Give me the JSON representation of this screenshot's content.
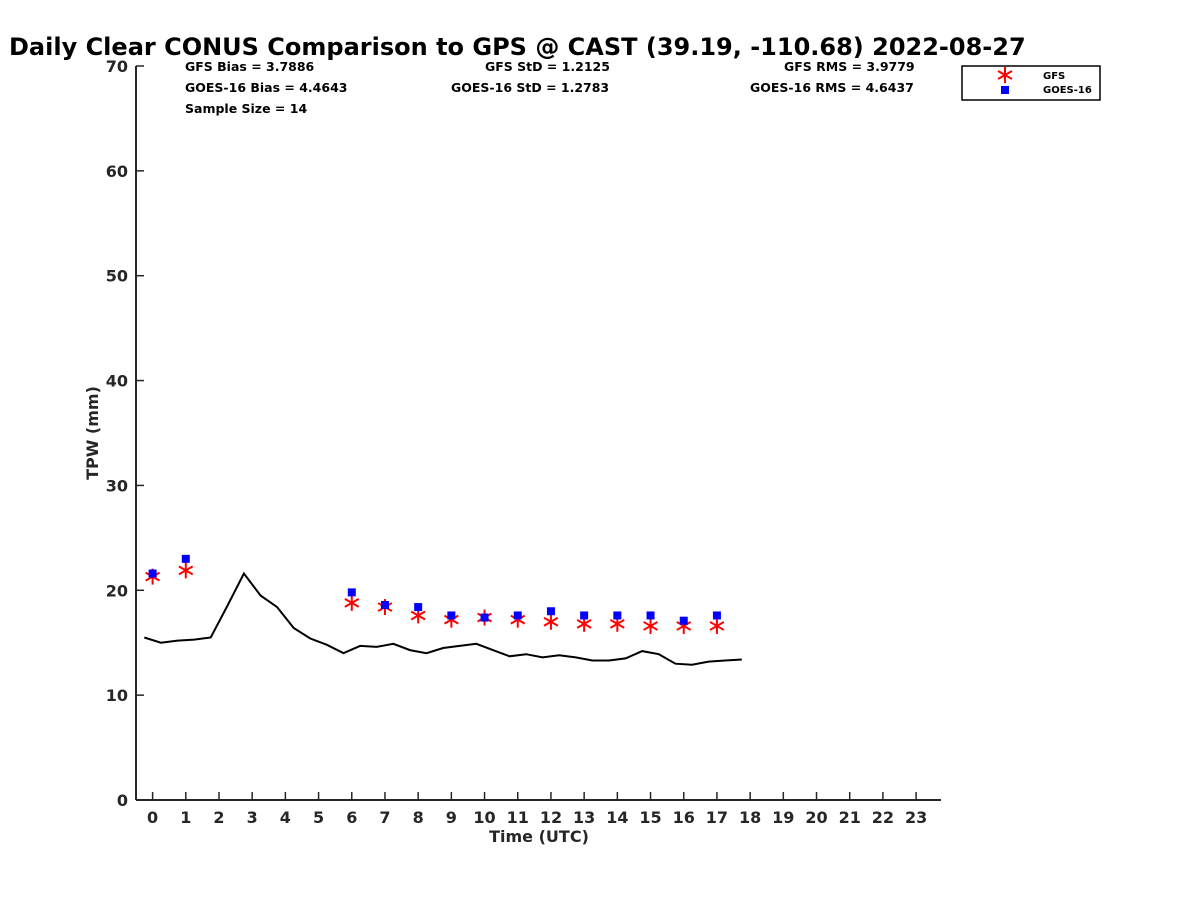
{
  "chart_data": {
    "type": "scatter",
    "title": "Daily Clear CONUS Comparison to GPS @ CAST (39.19, -110.68) 2022-08-27",
    "xlabel": "Time (UTC)",
    "ylabel": "TPW (mm)",
    "xlim": [
      -0.5,
      23.75
    ],
    "ylim": [
      0,
      70
    ],
    "xticks": [
      0,
      1,
      2,
      3,
      4,
      5,
      6,
      7,
      8,
      9,
      10,
      11,
      12,
      13,
      14,
      15,
      16,
      17,
      18,
      19,
      20,
      21,
      22,
      23
    ],
    "yticks": [
      0,
      10,
      20,
      30,
      40,
      50,
      60,
      70
    ],
    "grid": false,
    "legend_position": "top-right",
    "stats": {
      "gfs_bias": "GFS Bias = 3.7886",
      "goes_bias": "GOES-16 Bias = 4.4643",
      "sample_size": "Sample Size = 14",
      "gfs_std": "GFS StD = 1.2125",
      "goes_std": "GOES-16 StD = 1.2783",
      "gfs_rms": "GFS RMS = 3.9779",
      "goes_rms": "GOES-16 RMS = 4.6437"
    },
    "series": [
      {
        "name": "GFS",
        "kind": "marker-asterisk",
        "color": "#ff0000",
        "x": [
          0,
          1,
          6,
          7,
          8,
          9,
          10,
          11,
          12,
          13,
          14,
          15,
          16,
          17
        ],
        "y": [
          21.3,
          21.9,
          18.8,
          18.4,
          17.6,
          17.2,
          17.4,
          17.2,
          17.0,
          16.8,
          16.8,
          16.6,
          16.6,
          16.6
        ]
      },
      {
        "name": "GOES-16",
        "kind": "marker-square",
        "color": "#0000ff",
        "x": [
          0,
          1,
          6,
          7,
          8,
          9,
          10,
          11,
          12,
          13,
          14,
          15,
          16,
          17
        ],
        "y": [
          21.6,
          23.0,
          19.8,
          18.6,
          18.4,
          17.6,
          17.4,
          17.6,
          18.0,
          17.6,
          17.6,
          17.6,
          17.1,
          17.6
        ]
      },
      {
        "kind": "line",
        "color": "#000000",
        "x": [
          -0.25,
          0.25,
          0.75,
          1.25,
          1.75,
          2.25,
          2.75,
          3.25,
          3.75,
          4.25,
          4.75,
          5.25,
          5.75,
          6.25,
          6.75,
          7.25,
          7.75,
          8.25,
          8.75,
          9.25,
          9.75,
          10.25,
          10.75,
          11.25,
          11.75,
          12.25,
          12.75,
          13.25,
          13.75,
          14.25,
          14.75,
          15.25,
          15.75,
          16.25,
          16.75,
          17.25,
          17.75
        ],
        "y": [
          15.5,
          15.0,
          15.2,
          15.3,
          15.5,
          18.5,
          21.6,
          19.5,
          18.4,
          16.4,
          15.4,
          14.8,
          14.0,
          14.7,
          14.6,
          14.9,
          14.3,
          14.0,
          14.5,
          14.7,
          14.9,
          14.3,
          13.7,
          13.9,
          13.6,
          13.8,
          13.6,
          13.3,
          13.3,
          13.5,
          14.2,
          13.9,
          13.0,
          12.9,
          13.2,
          13.3,
          13.4
        ]
      }
    ]
  }
}
